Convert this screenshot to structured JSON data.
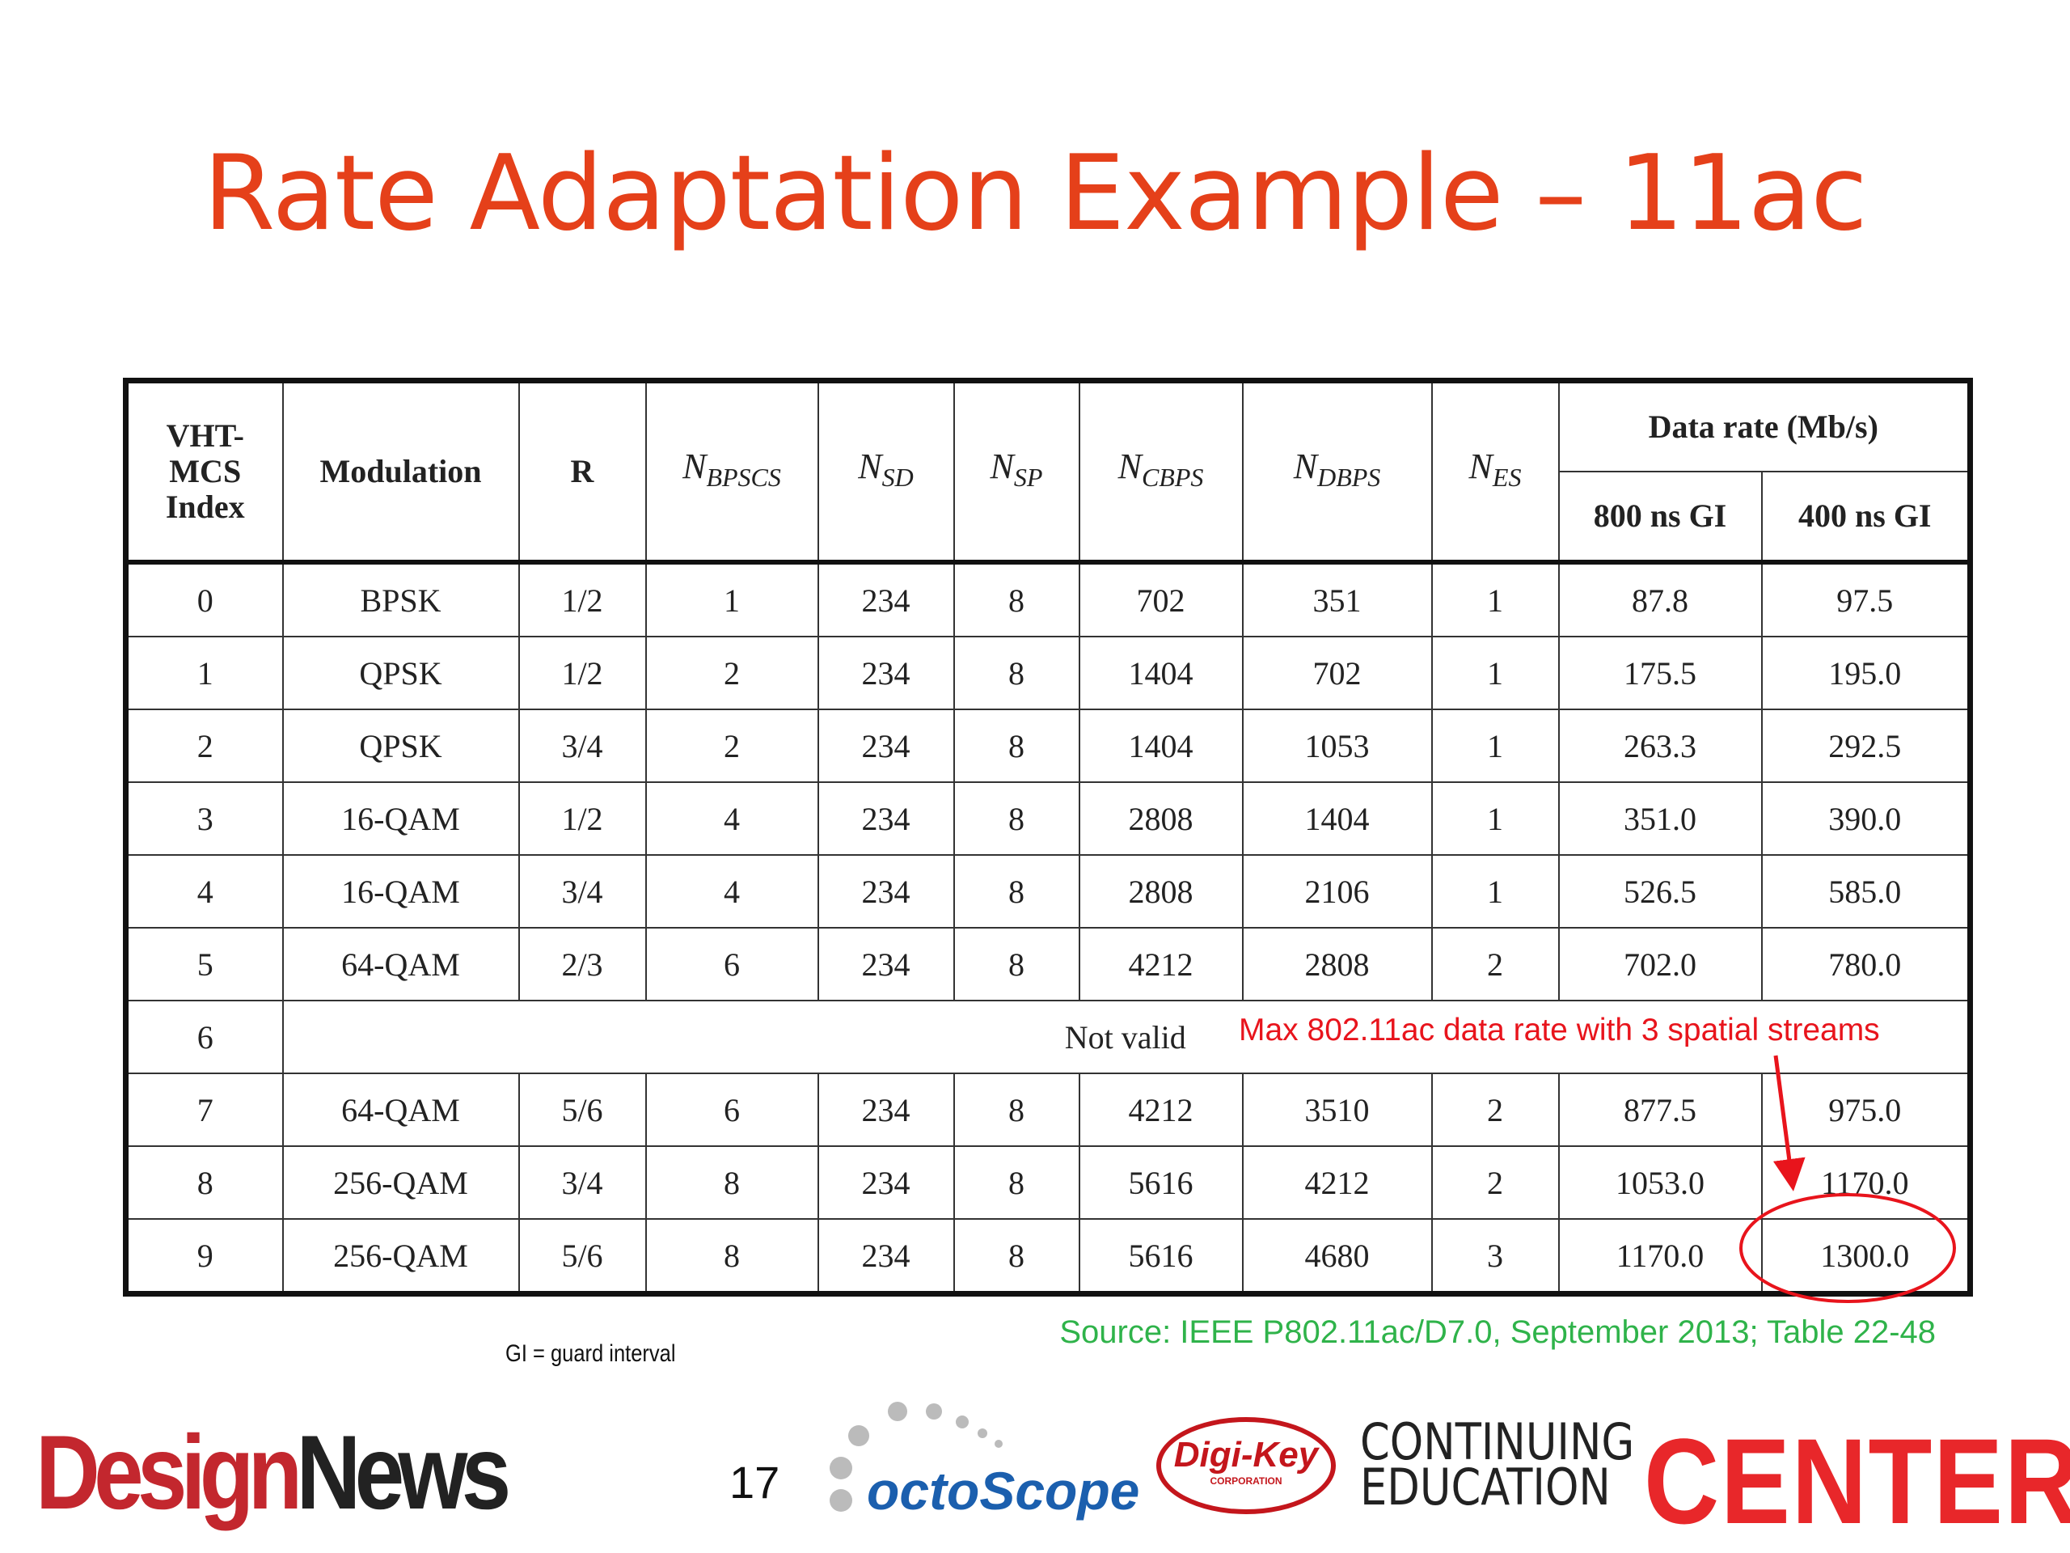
{
  "title": "Rate Adaptation Example – 11ac",
  "table": {
    "header": [
      [
        "VHT-",
        "MCS",
        "Index"
      ],
      "Modulation",
      "R",
      {
        "main": "N",
        "sub": "BPSCS"
      },
      {
        "main": "N",
        "sub": "SD"
      },
      {
        "main": "N",
        "sub": "SP"
      },
      {
        "main": "N",
        "sub": "CBPS"
      },
      {
        "main": "N",
        "sub": "DBPS"
      },
      {
        "main": "N",
        "sub": "ES"
      }
    ],
    "group_header": "Data rate (Mb/s)",
    "subheaders": [
      "800 ns GI",
      "400 ns GI"
    ],
    "rows": [
      [
        "0",
        "BPSK",
        "1/2",
        "1",
        "234",
        "8",
        "702",
        "351",
        "1",
        "87.8",
        "97.5"
      ],
      [
        "1",
        "QPSK",
        "1/2",
        "2",
        "234",
        "8",
        "1404",
        "702",
        "1",
        "175.5",
        "195.0"
      ],
      [
        "2",
        "QPSK",
        "3/4",
        "2",
        "234",
        "8",
        "1404",
        "1053",
        "1",
        "263.3",
        "292.5"
      ],
      [
        "3",
        "16-QAM",
        "1/2",
        "4",
        "234",
        "8",
        "2808",
        "1404",
        "1",
        "351.0",
        "390.0"
      ],
      [
        "4",
        "16-QAM",
        "3/4",
        "4",
        "234",
        "8",
        "2808",
        "2106",
        "1",
        "526.5",
        "585.0"
      ],
      [
        "5",
        "64-QAM",
        "2/3",
        "6",
        "234",
        "8",
        "4212",
        "2808",
        "2",
        "702.0",
        "780.0"
      ],
      [
        "6",
        "Not valid"
      ],
      [
        "7",
        "64-QAM",
        "5/6",
        "6",
        "234",
        "8",
        "4212",
        "3510",
        "2",
        "877.5",
        "975.0"
      ],
      [
        "8",
        "256-QAM",
        "3/4",
        "8",
        "234",
        "8",
        "5616",
        "4212",
        "2",
        "1053.0",
        "1170.0"
      ],
      [
        "9",
        "256-QAM",
        "5/6",
        "8",
        "234",
        "8",
        "5616",
        "4680",
        "3",
        "1170.0",
        "1300.0"
      ]
    ]
  },
  "annotation": "Max 802.11ac data rate with 3 spatial streams",
  "source": "Source: IEEE P802.11ac/D7.0, September 2013; Table 22-48",
  "footnote": "GI = guard interval",
  "page_number": "17",
  "logos": {
    "design": "Design",
    "news": "News",
    "octoscope": "octoScope",
    "digikey": "Digi-Key",
    "digikey_sub": "CORPORATION",
    "continuing": "CONTINUING",
    "education": "EDUCATION",
    "center": "CENTER"
  }
}
